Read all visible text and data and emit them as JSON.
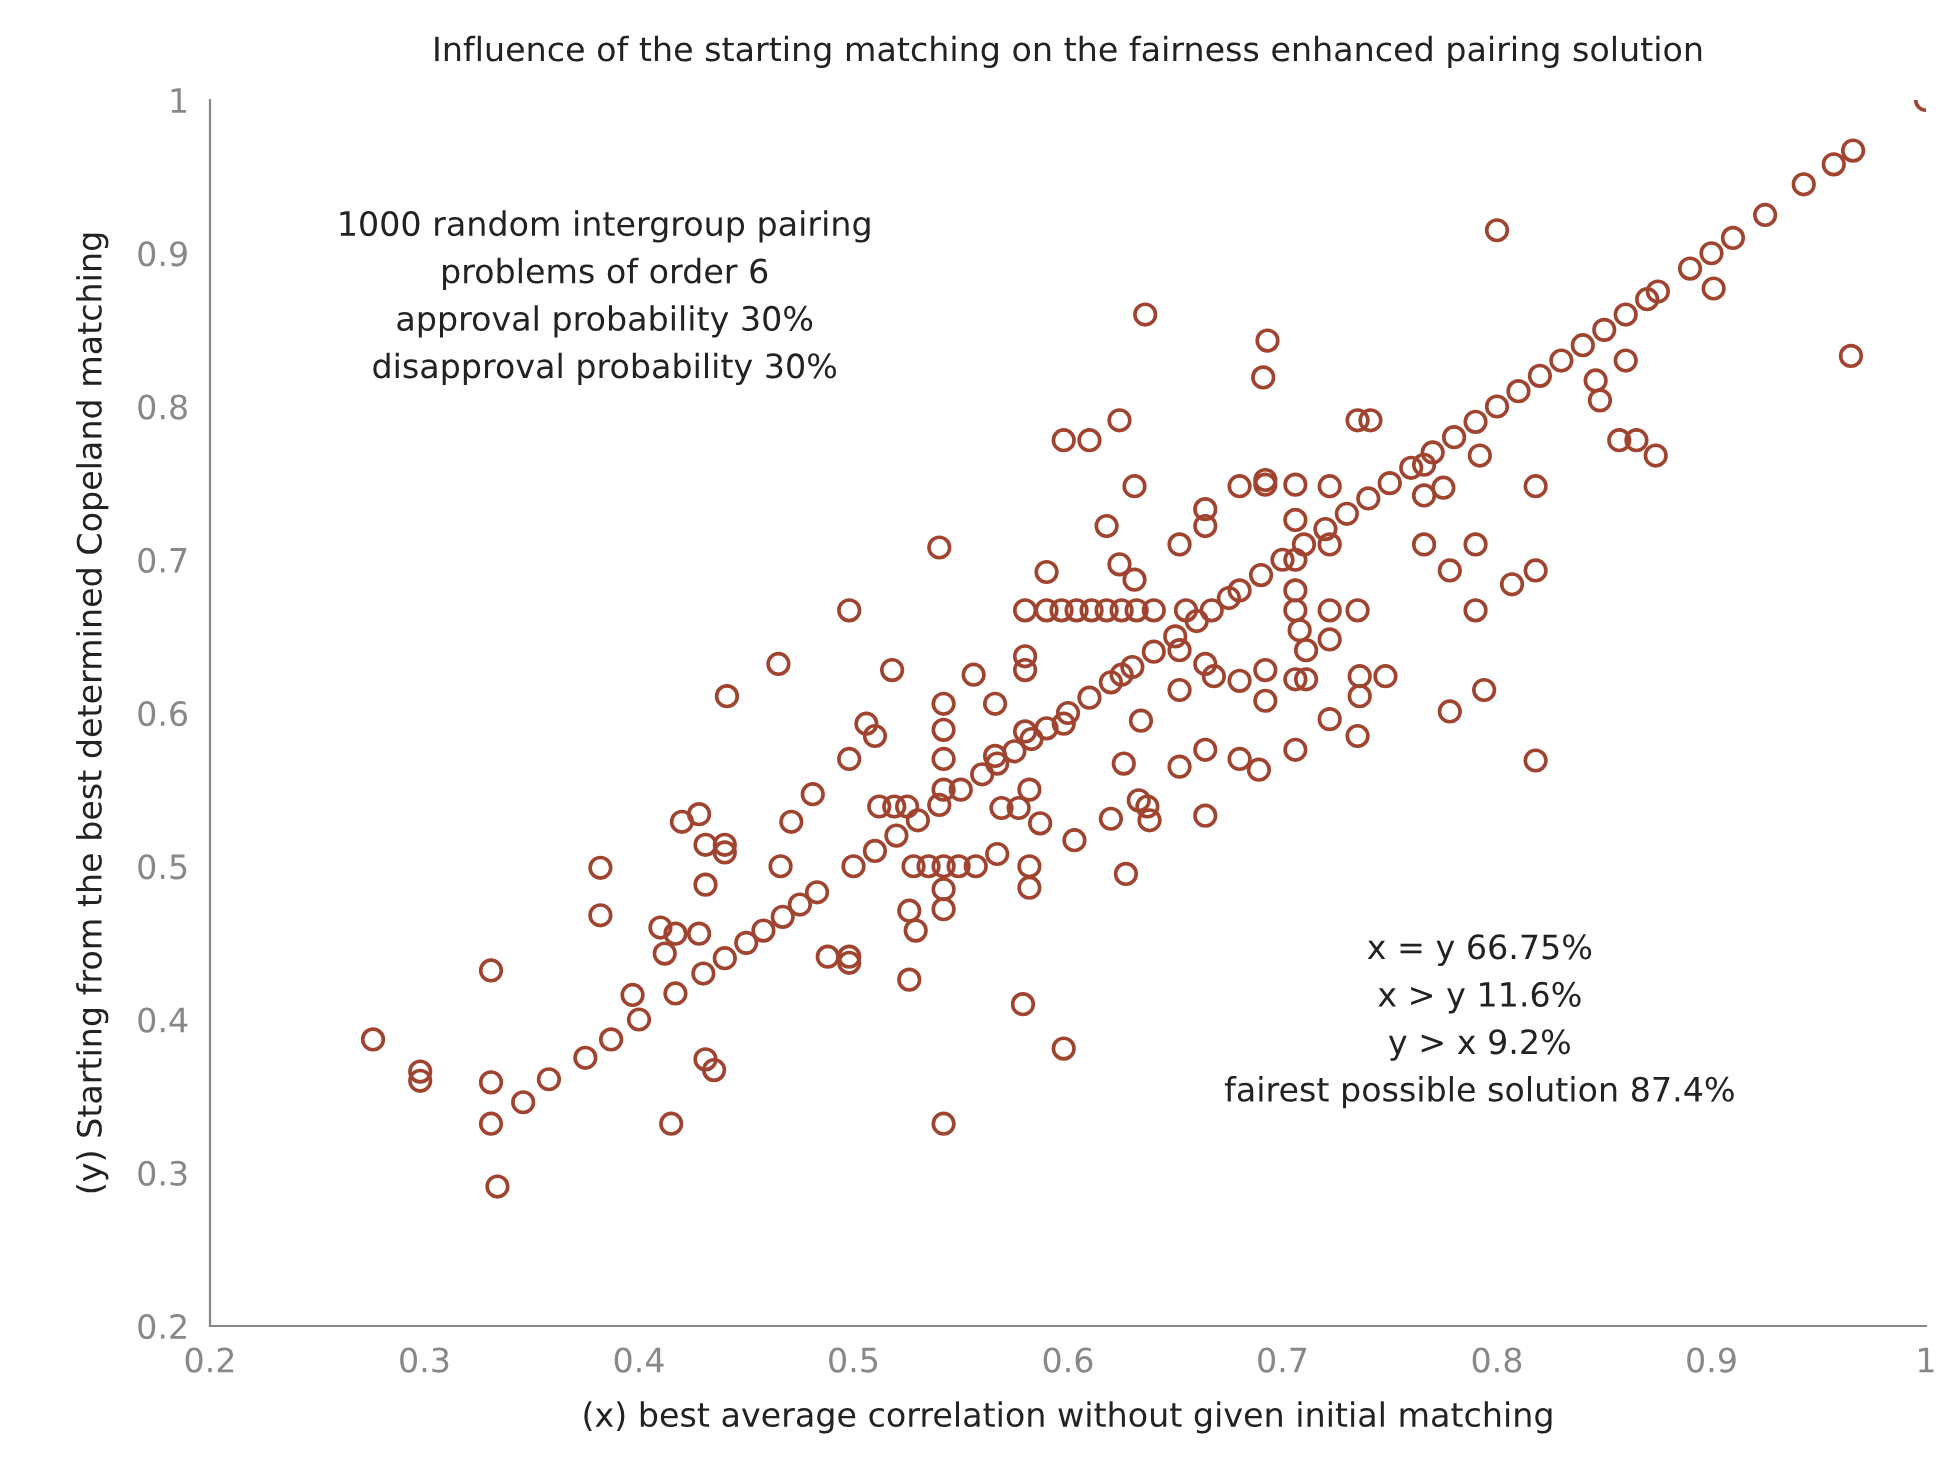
{
  "chart_data": {
    "type": "scatter",
    "title": "Influence of the starting matching on the fairness enhanced pairing solution",
    "xlabel": "(x) best average correlation without given initial matching",
    "ylabel": "(y) Starting from the best determined Copeland matching",
    "annotations": [
      "1000 random intergroup pairing\nproblems of order 6\napproval probability 30%\ndisapproval probability 30%",
      "x = y 66.75%\nx > y 11.6%\ny > x 9.2%\nfairest possible solution 87.4%"
    ],
    "series": [
      {
        "color": "#a0432f",
        "x": [
          0.276,
          0.298,
          0.298,
          0.331,
          0.331,
          0.331,
          0.334,
          0.346,
          0.358,
          0.382,
          0.382,
          0.387,
          0.397,
          0.4,
          0.41,
          0.412,
          0.415,
          0.417,
          0.42,
          0.428,
          0.428,
          0.431,
          0.431,
          0.431,
          0.435,
          0.441,
          0.44,
          0.44,
          0.465,
          0.466,
          0.471,
          0.481,
          0.488,
          0.498,
          0.498,
          0.498,
          0.498,
          0.506,
          0.51,
          0.518,
          0.512,
          0.519,
          0.525,
          0.528,
          0.535,
          0.526,
          0.529,
          0.526,
          0.54,
          0.542,
          0.542,
          0.542,
          0.542,
          0.542,
          0.549,
          0.557,
          0.542,
          0.542,
          0.542,
          0.556,
          0.566,
          0.566,
          0.567,
          0.569,
          0.577,
          0.58,
          0.58,
          0.58,
          0.58,
          0.582,
          0.579,
          0.582,
          0.582,
          0.587,
          0.59,
          0.59,
          0.597,
          0.604,
          0.611,
          0.618,
          0.625,
          0.632,
          0.64,
          0.598,
          0.598,
          0.598,
          0.61,
          0.624,
          0.618,
          0.624,
          0.631,
          0.631,
          0.636,
          0.634,
          0.633,
          0.637,
          0.638,
          0.627,
          0.62,
          0.603,
          0.626,
          0.655,
          0.652,
          0.652,
          0.652,
          0.652,
          0.664,
          0.664,
          0.664,
          0.668,
          0.664,
          0.664,
          0.68,
          0.68,
          0.68,
          0.691,
          0.692,
          0.692,
          0.693,
          0.692,
          0.692,
          0.689,
          0.706,
          0.706,
          0.706,
          0.706,
          0.706,
          0.708,
          0.711,
          0.706,
          0.711,
          0.706,
          0.722,
          0.722,
          0.722,
          0.722,
          0.722,
          0.735,
          0.741,
          0.735,
          0.736,
          0.736,
          0.735,
          0.748,
          0.8,
          0.766,
          0.766,
          0.775,
          0.766,
          0.778,
          0.778,
          0.792,
          0.79,
          0.79,
          0.794,
          0.807,
          0.818,
          0.818,
          0.818,
          0.857,
          0.865,
          0.874,
          0.86,
          0.846,
          0.848,
          0.901,
          0.965,
          0.375,
          0.417,
          0.43,
          0.44,
          0.45,
          0.458,
          0.467,
          0.475,
          0.483,
          0.5,
          0.51,
          0.52,
          0.53,
          0.54,
          0.55,
          0.56,
          0.567,
          0.575,
          0.583,
          0.59,
          0.6,
          0.61,
          0.62,
          0.625,
          0.63,
          0.64,
          0.65,
          0.66,
          0.667,
          0.675,
          0.68,
          0.69,
          0.7,
          0.71,
          0.72,
          0.73,
          0.74,
          0.75,
          0.76,
          0.77,
          0.78,
          0.79,
          0.8,
          0.81,
          0.82,
          0.83,
          0.84,
          0.85,
          0.86,
          0.87,
          0.875,
          0.89,
          0.9,
          0.91,
          0.925,
          0.943,
          0.957,
          0.966,
          1.0
        ],
        "values": [
          0.387,
          0.366,
          0.36,
          0.432,
          0.359,
          0.332,
          0.291,
          0.346,
          0.361,
          0.499,
          0.468,
          0.387,
          0.416,
          0.4,
          0.46,
          0.443,
          0.332,
          0.456,
          0.529,
          0.534,
          0.456,
          0.514,
          0.488,
          0.374,
          0.367,
          0.611,
          0.514,
          0.509,
          0.632,
          0.5,
          0.529,
          0.547,
          0.441,
          0.441,
          0.437,
          0.57,
          0.667,
          0.593,
          0.585,
          0.628,
          0.539,
          0.539,
          0.539,
          0.5,
          0.5,
          0.471,
          0.458,
          0.426,
          0.708,
          0.606,
          0.589,
          0.57,
          0.55,
          0.5,
          0.5,
          0.5,
          0.485,
          0.472,
          0.332,
          0.625,
          0.606,
          0.572,
          0.508,
          0.538,
          0.538,
          0.667,
          0.637,
          0.628,
          0.588,
          0.55,
          0.41,
          0.5,
          0.486,
          0.528,
          0.692,
          0.667,
          0.667,
          0.667,
          0.667,
          0.667,
          0.667,
          0.667,
          0.667,
          0.778,
          0.593,
          0.381,
          0.778,
          0.791,
          0.722,
          0.697,
          0.748,
          0.687,
          0.86,
          0.595,
          0.543,
          0.539,
          0.53,
          0.495,
          0.531,
          0.517,
          0.567,
          0.667,
          0.641,
          0.71,
          0.615,
          0.565,
          0.733,
          0.722,
          0.632,
          0.624,
          0.576,
          0.533,
          0.748,
          0.621,
          0.57,
          0.819,
          0.752,
          0.749,
          0.843,
          0.628,
          0.608,
          0.563,
          0.749,
          0.726,
          0.7,
          0.68,
          0.667,
          0.654,
          0.641,
          0.622,
          0.622,
          0.576,
          0.748,
          0.71,
          0.667,
          0.648,
          0.596,
          0.791,
          0.791,
          0.667,
          0.624,
          0.611,
          0.585,
          0.624,
          0.915,
          0.762,
          0.742,
          0.747,
          0.71,
          0.693,
          0.601,
          0.768,
          0.71,
          0.667,
          0.615,
          0.684,
          0.748,
          0.693,
          0.569,
          0.778,
          0.778,
          0.768,
          0.83,
          0.817,
          0.804,
          0.877,
          0.833,
          0.375,
          0.417,
          0.43,
          0.44,
          0.45,
          0.458,
          0.467,
          0.475,
          0.483,
          0.5,
          0.51,
          0.52,
          0.53,
          0.54,
          0.55,
          0.56,
          0.567,
          0.575,
          0.583,
          0.59,
          0.6,
          0.61,
          0.62,
          0.625,
          0.63,
          0.64,
          0.65,
          0.66,
          0.667,
          0.675,
          0.68,
          0.69,
          0.7,
          0.71,
          0.72,
          0.73,
          0.74,
          0.75,
          0.76,
          0.77,
          0.78,
          0.79,
          0.8,
          0.81,
          0.82,
          0.83,
          0.84,
          0.85,
          0.86,
          0.87,
          0.875,
          0.89,
          0.9,
          0.91,
          0.925,
          0.945,
          0.958,
          0.967,
          1.0
        ]
      }
    ],
    "marker": "circle",
    "xlim": [
      0.2,
      1
    ],
    "xticks": [
      0.2,
      0.3,
      0.4,
      0.5,
      0.6,
      0.7,
      0.8,
      0.9,
      1
    ],
    "ylim": [
      0.2,
      1
    ],
    "yticks": [
      0.2,
      0.3,
      0.4,
      0.5,
      0.6,
      0.7,
      0.8,
      0.9,
      1
    ],
    "grid": false
  }
}
